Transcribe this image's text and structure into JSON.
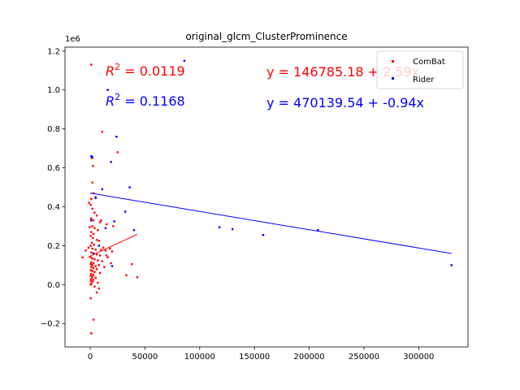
{
  "chart_data": {
    "type": "scatter",
    "title": "original_glcm_ClusterProminence",
    "xlabel": "",
    "ylabel": "",
    "y_offset_label": "1e6",
    "xlim": [
      -23000,
      345000
    ],
    "ylim": [
      -320000,
      1220000
    ],
    "x_ticks": [
      0,
      50000,
      100000,
      150000,
      200000,
      250000,
      300000
    ],
    "x_tick_labels": [
      "0",
      "50000",
      "100000",
      "150000",
      "200000",
      "250000",
      "300000"
    ],
    "y_ticks": [
      -200000,
      0,
      200000,
      400000,
      600000,
      800000,
      1000000,
      1200000
    ],
    "y_tick_labels": [
      "−0.2",
      "0.0",
      "0.2",
      "0.4",
      "0.6",
      "0.8",
      "1.0",
      "1.2"
    ],
    "legend": {
      "placement": "top-right",
      "entries": [
        "ComBat",
        "Rider"
      ]
    },
    "annotations": [
      {
        "text": "R² = 0.0119",
        "color": "#ff0000"
      },
      {
        "text": "R² = 0.1168",
        "color": "#0000ff"
      },
      {
        "text": "y = 146785.18 + 2.59x",
        "color": "#ff0000"
      },
      {
        "text": "y = 470139.54 + -0.94x",
        "color": "#0000ff"
      }
    ],
    "series": [
      {
        "name": "ComBat",
        "color": "#ff0000",
        "fit": {
          "intercept": 146785.18,
          "slope": 2.59,
          "x_range": [
            -2000,
            43000
          ]
        },
        "points": [
          [
            1000,
            1130000
          ],
          [
            11000,
            785000
          ],
          [
            25000,
            680000
          ],
          [
            1500,
            650000
          ],
          [
            2500,
            610000
          ],
          [
            2000,
            525000
          ],
          [
            3000,
            470000
          ],
          [
            5000,
            450000
          ],
          [
            1000,
            440000
          ],
          [
            -1000,
            420000
          ],
          [
            500,
            410000
          ],
          [
            2000,
            390000
          ],
          [
            4000,
            370000
          ],
          [
            6000,
            355000
          ],
          [
            1000,
            340000
          ],
          [
            3000,
            330000
          ],
          [
            9000,
            320000
          ],
          [
            15000,
            310000
          ],
          [
            2000,
            300000
          ],
          [
            -500,
            295000
          ],
          [
            4000,
            290000
          ],
          [
            7000,
            280000
          ],
          [
            1000,
            270000
          ],
          [
            3000,
            260000
          ],
          [
            500,
            250000
          ],
          [
            2500,
            240000
          ],
          [
            6000,
            230000
          ],
          [
            8000,
            225000
          ],
          [
            1500,
            215000
          ],
          [
            3500,
            205000
          ],
          [
            500,
            200000
          ],
          [
            -1500,
            190000
          ],
          [
            2000,
            185000
          ],
          [
            5000,
            180000
          ],
          [
            10000,
            178000
          ],
          [
            12000,
            190000
          ],
          [
            18000,
            185000
          ],
          [
            20000,
            170000
          ],
          [
            -4000,
            175000
          ],
          [
            1000,
            165000
          ],
          [
            3000,
            160000
          ],
          [
            6000,
            155000
          ],
          [
            9000,
            150000
          ],
          [
            15000,
            150000
          ],
          [
            -7000,
            140000
          ],
          [
            500,
            140000
          ],
          [
            2000,
            135000
          ],
          [
            4000,
            130000
          ],
          [
            7000,
            125000
          ],
          [
            11000,
            120000
          ],
          [
            1000,
            115000
          ],
          [
            3000,
            110000
          ],
          [
            500,
            105000
          ],
          [
            2000,
            100000
          ],
          [
            5000,
            95000
          ],
          [
            8000,
            100000
          ],
          [
            19000,
            110000
          ],
          [
            38000,
            105000
          ],
          [
            1000,
            90000
          ],
          [
            3000,
            85000
          ],
          [
            6000,
            80000
          ],
          [
            500,
            75000
          ],
          [
            2000,
            70000
          ],
          [
            4000,
            65000
          ],
          [
            9000,
            60000
          ],
          [
            1000,
            55000
          ],
          [
            3000,
            50000
          ],
          [
            33000,
            48000
          ],
          [
            43000,
            38000
          ],
          [
            500,
            45000
          ],
          [
            2000,
            40000
          ],
          [
            5000,
            35000
          ],
          [
            1000,
            30000
          ],
          [
            3000,
            25000
          ],
          [
            500,
            20000
          ],
          [
            2000,
            15000
          ],
          [
            7000,
            10000
          ],
          [
            1000,
            5000
          ],
          [
            500,
            0
          ],
          [
            4000,
            -10000
          ],
          [
            8000,
            -20000
          ],
          [
            6000,
            -40000
          ],
          [
            500,
            -70000
          ],
          [
            3000,
            -180000
          ],
          [
            1000,
            -250000
          ],
          [
            13000,
            90000
          ],
          [
            16000,
            140000
          ],
          [
            14000,
            175000
          ],
          [
            21000,
            300000
          ],
          [
            10000,
            330000
          ]
        ]
      },
      {
        "name": "Rider",
        "color": "#0000ff",
        "fit": {
          "intercept": 470139.54,
          "slope": -0.94,
          "x_range": [
            0,
            330000
          ]
        },
        "points": [
          [
            86000,
            1150000
          ],
          [
            16000,
            1000000
          ],
          [
            24000,
            760000
          ],
          [
            1000,
            660000
          ],
          [
            2000,
            655000
          ],
          [
            19000,
            630000
          ],
          [
            36000,
            500000
          ],
          [
            11000,
            490000
          ],
          [
            5000,
            445000
          ],
          [
            32000,
            375000
          ],
          [
            1000,
            330000
          ],
          [
            22000,
            325000
          ],
          [
            40000,
            280000
          ],
          [
            118000,
            295000
          ],
          [
            130000,
            285000
          ],
          [
            158000,
            255000
          ],
          [
            208000,
            280000
          ],
          [
            330000,
            100000
          ],
          [
            14000,
            290000
          ],
          [
            8000,
            200000
          ],
          [
            20000,
            95000
          ],
          [
            3000,
            160000
          ]
        ]
      }
    ]
  }
}
